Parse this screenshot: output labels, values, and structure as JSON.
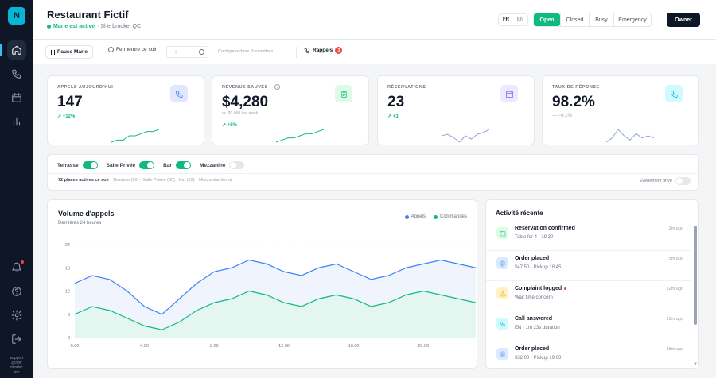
{
  "sidebar": {
    "logo": "N",
    "support": [
      "support",
      "@noir",
      "mindsc",
      "om"
    ]
  },
  "header": {
    "title": "Restaurant Fictif",
    "status_text": "Marie est active",
    "location": "· Sherbrooke, QC",
    "languages": [
      "FR",
      "EN"
    ],
    "statuses": [
      "Open",
      "Closed",
      "Busy",
      "Emergency"
    ],
    "owner_label": "Owner"
  },
  "toolbar": {
    "pause_label": "Pause Marie",
    "closing_label": "Fermeture ce soir",
    "time_value": "-- : -- --",
    "config_link": "Configurer dans Paramètres",
    "rappels_label": "Rappels",
    "rappels_count": "3"
  },
  "stats": [
    {
      "label": "APPELS AUJOURD'HUI",
      "value": "147",
      "note": "",
      "delta": "↗ +12%",
      "spark": [
        4,
        5,
        5,
        7,
        7,
        8,
        9,
        9,
        10
      ]
    },
    {
      "label": "REVENUS SAUVÉS",
      "value": "$4,280",
      "note": "vs. $3,960 last week",
      "delta": "↗ +8%",
      "spark": [
        2,
        3,
        4,
        4,
        5,
        6,
        6,
        7,
        8
      ]
    },
    {
      "label": "RÉSERVATIONS",
      "value": "23",
      "note": "",
      "delta": "↗ +3",
      "spark": [
        6,
        7,
        5,
        2,
        6,
        4,
        7,
        8,
        10
      ]
    },
    {
      "label": "TAUX DE RÉPONSE",
      "value": "98.2%",
      "note": "",
      "delta": "— −0.1%",
      "spark": [
        3,
        5,
        9,
        6,
        4,
        7,
        5,
        6,
        5
      ]
    }
  ],
  "areas": {
    "items": [
      {
        "label": "Terrasse",
        "on": true
      },
      {
        "label": "Salle Privée",
        "on": true
      },
      {
        "label": "Bar",
        "on": true
      },
      {
        "label": "Mezzanine",
        "on": false
      }
    ],
    "summary": "72 places actives ce soir",
    "details": "· Terrasse (20) · Salle Privée (30) · Bar (22) ·",
    "closed": "Mezzanine fermé",
    "event_label": "Événement privé"
  },
  "chart_data": {
    "type": "area",
    "title": "Volume d'appels",
    "subtitle": "Dernières 24 heures",
    "x_ticks": [
      "0:00",
      "4:00",
      "8:00",
      "12:00",
      "16:00",
      "20:00"
    ],
    "ylim": [
      0,
      24
    ],
    "y_ticks": [
      "0",
      "6",
      "12",
      "18",
      "24"
    ],
    "x": [
      0,
      2,
      4,
      6,
      8,
      10,
      12,
      14,
      16,
      18,
      20,
      22,
      24,
      26,
      28,
      30,
      32,
      34,
      36,
      38,
      40,
      42,
      44,
      46
    ],
    "series": [
      {
        "name": "Appels",
        "color": "#3b82f6",
        "values": [
          14,
          16,
          15,
          12,
          8,
          6,
          10,
          14,
          17,
          18,
          20,
          19,
          17,
          16,
          18,
          19,
          17,
          15,
          16,
          18,
          19,
          20,
          19,
          18
        ]
      },
      {
        "name": "Commandes",
        "color": "#10b981",
        "values": [
          6,
          8,
          7,
          5,
          3,
          2,
          4,
          7,
          9,
          10,
          12,
          11,
          9,
          8,
          10,
          11,
          10,
          8,
          9,
          11,
          12,
          11,
          10,
          9
        ]
      }
    ]
  },
  "activity": {
    "title": "Activité récente",
    "items": [
      {
        "title": "Reservation confirmed",
        "detail": "Table for 4 · 19:30",
        "time": "2m ago",
        "kind": "calendar",
        "color": "#10b981",
        "bg": "#dcfce7",
        "alert": false
      },
      {
        "title": "Order placed",
        "detail": "$47.50 · Pickup 18:45",
        "time": "5m ago",
        "kind": "doc",
        "color": "#3b82f6",
        "bg": "#dbeafe",
        "alert": false
      },
      {
        "title": "Complaint logged",
        "detail": "Wait time concern",
        "time": "12m ago",
        "kind": "warn",
        "color": "#f59e0b",
        "bg": "#fef3c7",
        "alert": true
      },
      {
        "title": "Call answered",
        "detail": "EN · 1m 23s duration",
        "time": "15m ago",
        "kind": "phone",
        "color": "#06b6d4",
        "bg": "#cffafe",
        "alert": false
      },
      {
        "title": "Order placed",
        "detail": "$32.00 · Pickup 19:00",
        "time": "18m ago",
        "kind": "doc",
        "color": "#3b82f6",
        "bg": "#dbeafe",
        "alert": false
      }
    ]
  }
}
